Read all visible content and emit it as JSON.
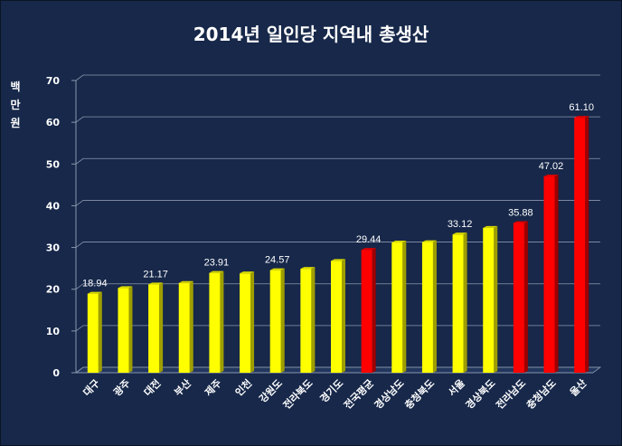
{
  "chart_data": {
    "type": "bar",
    "title": "2014년 일인당 지역내 총생산",
    "ylabel": "백만원",
    "xlabel": "",
    "ylim": [
      0,
      70
    ],
    "yticks": [
      0,
      10,
      20,
      30,
      40,
      50,
      60,
      70
    ],
    "grid": true,
    "legend": "none",
    "categories": [
      "대구",
      "광주",
      "대전",
      "부산",
      "제주",
      "인천",
      "강원도",
      "전라북도",
      "경기도",
      "전국평균",
      "경상남도",
      "충청북도",
      "서울",
      "경상북도",
      "전라남도",
      "충청남도",
      "울산"
    ],
    "values": [
      18.94,
      20.3,
      21.17,
      21.5,
      23.91,
      23.8,
      24.57,
      24.9,
      26.8,
      29.44,
      31.2,
      31.3,
      33.12,
      34.7,
      35.88,
      47.02,
      61.1
    ],
    "data_labels": [
      "18.94",
      "",
      "21.17",
      "",
      "23.91",
      "",
      "24.57",
      "",
      "",
      "29.44",
      "",
      "",
      "33.12",
      "",
      "35.88",
      "47.02",
      "61.10"
    ],
    "highlighted": [
      "전국평균",
      "전라남도",
      "충청남도",
      "울산"
    ],
    "colors": {
      "background": "#17284a",
      "grid": "#8a96ac",
      "bar": "#ffff00",
      "bar_highlight": "#ff0000",
      "text": "#ffffff"
    }
  }
}
